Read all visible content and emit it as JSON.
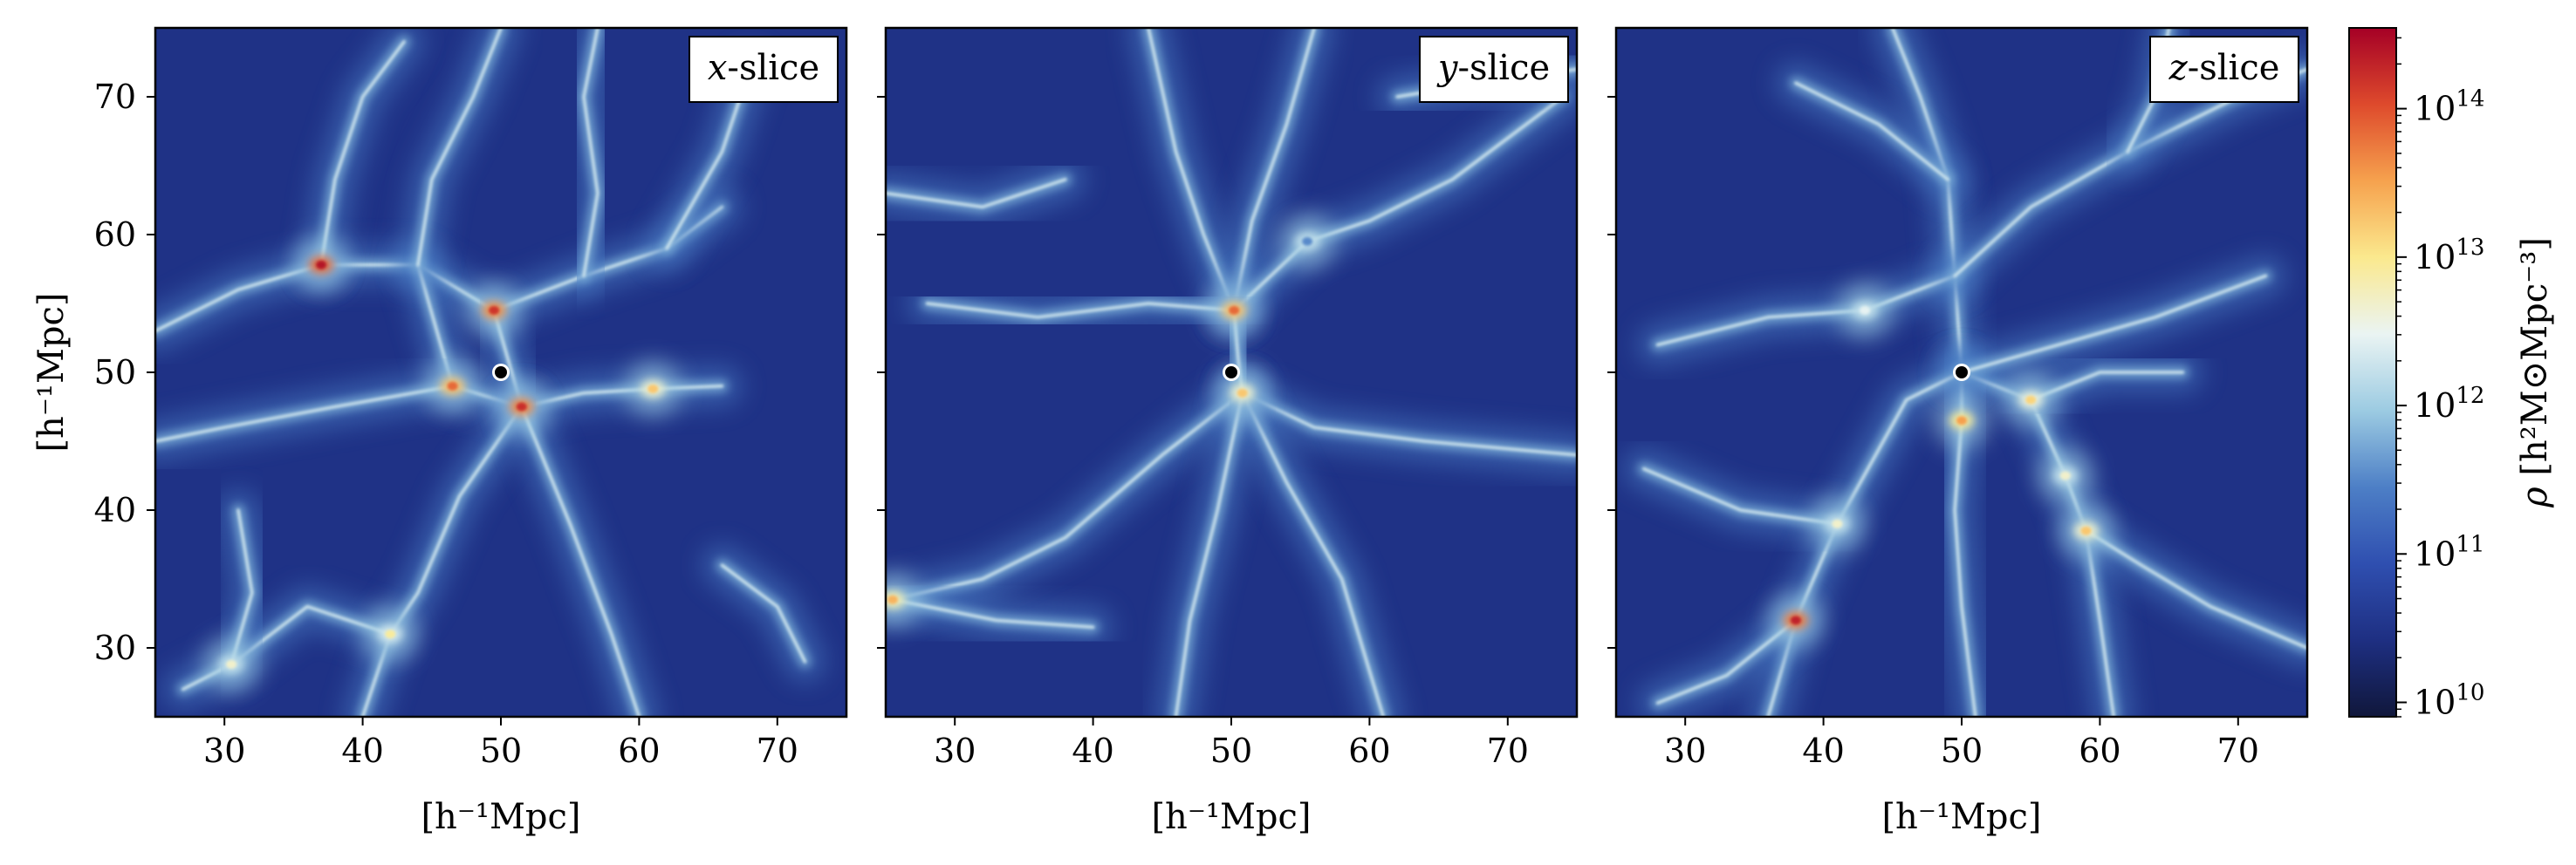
{
  "chart_data": {
    "type": "heatmap",
    "panels": [
      {
        "id": "x",
        "label_var": "x",
        "label_text": "-slice",
        "xlabel": "[h⁻¹Mpc]",
        "ylabel": "[h⁻¹Mpc]",
        "xlim": [
          25,
          75
        ],
        "ylim": [
          25,
          75
        ],
        "xticks": [
          30,
          40,
          50,
          60,
          70
        ],
        "yticks": [
          30,
          40,
          50,
          60,
          70
        ],
        "marker": {
          "x": 50,
          "y": 50
        },
        "hotspots": [
          {
            "x": 37,
            "y": 57.8,
            "level": 0.97
          },
          {
            "x": 49.5,
            "y": 54.5,
            "level": 0.92
          },
          {
            "x": 51.5,
            "y": 47.5,
            "level": 0.93
          },
          {
            "x": 46.5,
            "y": 49,
            "level": 0.85
          },
          {
            "x": 61,
            "y": 48.8,
            "level": 0.72
          },
          {
            "x": 42,
            "y": 31,
            "level": 0.65
          },
          {
            "x": 30.5,
            "y": 28.8,
            "level": 0.6
          }
        ],
        "filaments": [
          [
            [
              37,
              57.8
            ],
            [
              44,
              57.8
            ],
            [
              49.5,
              54.5
            ],
            [
              56,
              57
            ],
            [
              62,
              59
            ],
            [
              66,
              62
            ]
          ],
          [
            [
              37,
              57.8
            ],
            [
              31,
              56
            ],
            [
              25,
              53
            ]
          ],
          [
            [
              37,
              57.8
            ],
            [
              38,
              64
            ],
            [
              40,
              70
            ],
            [
              43,
              74
            ]
          ],
          [
            [
              44,
              57.8
            ],
            [
              46.5,
              49
            ],
            [
              51.5,
              47.5
            ],
            [
              56,
              48.5
            ],
            [
              61,
              48.8
            ],
            [
              66,
              49
            ]
          ],
          [
            [
              49.5,
              54.5
            ],
            [
              50.5,
              51
            ],
            [
              51.5,
              47.5
            ]
          ],
          [
            [
              51.5,
              47.5
            ],
            [
              47,
              41
            ],
            [
              44,
              34
            ],
            [
              42,
              31
            ],
            [
              40,
              25
            ]
          ],
          [
            [
              51.5,
              47.5
            ],
            [
              55,
              39
            ],
            [
              58,
              31
            ],
            [
              60,
              25
            ]
          ],
          [
            [
              42,
              31
            ],
            [
              36,
              33
            ],
            [
              30.5,
              28.8
            ],
            [
              27,
              27
            ]
          ],
          [
            [
              46.5,
              49
            ],
            [
              38,
              47.5
            ],
            [
              30,
              46
            ],
            [
              25,
              45
            ]
          ],
          [
            [
              56,
              57
            ],
            [
              57,
              63
            ],
            [
              56,
              70
            ],
            [
              57,
              75
            ]
          ],
          [
            [
              62,
              59
            ],
            [
              66,
              66
            ],
            [
              68,
              72
            ]
          ],
          [
            [
              44,
              57.8
            ],
            [
              45,
              64
            ],
            [
              48,
              70
            ],
            [
              50,
              75
            ]
          ],
          [
            [
              30.5,
              28.8
            ],
            [
              32,
              34
            ],
            [
              31,
              40
            ]
          ],
          [
            [
              66,
              36
            ],
            [
              70,
              33
            ],
            [
              72,
              29
            ]
          ]
        ]
      },
      {
        "id": "y",
        "label_var": "y",
        "label_text": "-slice",
        "xlabel": "[h⁻¹Mpc]",
        "xlim": [
          25,
          75
        ],
        "ylim": [
          25,
          75
        ],
        "xticks": [
          30,
          40,
          50,
          60,
          70
        ],
        "yticks": [
          30,
          40,
          50,
          60,
          70
        ],
        "marker": {
          "x": 50,
          "y": 50
        },
        "hotspots": [
          {
            "x": 50.2,
            "y": 54.5,
            "level": 0.85
          },
          {
            "x": 50.8,
            "y": 48.5,
            "level": 0.72
          },
          {
            "x": 25.5,
            "y": 33.5,
            "level": 0.75
          },
          {
            "x": 55.5,
            "y": 59.5,
            "level": 0.35
          }
        ],
        "filaments": [
          [
            [
              50.2,
              54.5
            ],
            [
              48,
              60
            ],
            [
              46,
              66
            ],
            [
              44,
              75
            ]
          ],
          [
            [
              50.2,
              54.5
            ],
            [
              51.5,
              61
            ],
            [
              54,
              68
            ],
            [
              56,
              75
            ]
          ],
          [
            [
              50.2,
              54.5
            ],
            [
              55.5,
              59.5
            ],
            [
              60,
              61
            ],
            [
              66,
              64
            ],
            [
              74,
              70
            ]
          ],
          [
            [
              50.2,
              54.5
            ],
            [
              44,
              55
            ],
            [
              36,
              54
            ],
            [
              28,
              55
            ]
          ],
          [
            [
              50.8,
              48.5
            ],
            [
              56,
              46
            ],
            [
              64,
              45
            ],
            [
              75,
              44
            ]
          ],
          [
            [
              50.8,
              48.5
            ],
            [
              54,
              42
            ],
            [
              58,
              35
            ],
            [
              61,
              25
            ]
          ],
          [
            [
              50.8,
              48.5
            ],
            [
              45,
              44
            ],
            [
              38,
              38
            ],
            [
              32,
              35
            ],
            [
              25.5,
              33.5
            ]
          ],
          [
            [
              50.8,
              48.5
            ],
            [
              49,
              40
            ],
            [
              47,
              32
            ],
            [
              46,
              25
            ]
          ],
          [
            [
              25.5,
              33.5
            ],
            [
              33,
              32
            ],
            [
              40,
              31.5
            ]
          ],
          [
            [
              50.2,
              54.5
            ],
            [
              50.5,
              51
            ],
            [
              50.8,
              48.5
            ]
          ],
          [
            [
              25,
              63
            ],
            [
              32,
              62
            ],
            [
              38,
              64
            ]
          ],
          [
            [
              62,
              70
            ],
            [
              68,
              71
            ],
            [
              75,
              72
            ]
          ]
        ]
      },
      {
        "id": "z",
        "label_var": "z",
        "label_text": "-slice",
        "xlabel": "[h⁻¹Mpc]",
        "xlim": [
          25,
          75
        ],
        "ylim": [
          25,
          75
        ],
        "xticks": [
          30,
          40,
          50,
          60,
          70
        ],
        "yticks": [
          30,
          40,
          50,
          60,
          70
        ],
        "marker": {
          "x": 50,
          "y": 50
        },
        "hotspots": [
          {
            "x": 38,
            "y": 32,
            "level": 0.95
          },
          {
            "x": 50,
            "y": 46.5,
            "level": 0.78
          },
          {
            "x": 55,
            "y": 48,
            "level": 0.7
          },
          {
            "x": 59,
            "y": 38.5,
            "level": 0.72
          },
          {
            "x": 57.5,
            "y": 42.5,
            "level": 0.6
          },
          {
            "x": 41,
            "y": 39,
            "level": 0.6
          },
          {
            "x": 43,
            "y": 54.5,
            "level": 0.55
          }
        ],
        "filaments": [
          [
            [
              50,
              50
            ],
            [
              49.5,
              57
            ],
            [
              49,
              64
            ],
            [
              47,
              70
            ],
            [
              45,
              75
            ]
          ],
          [
            [
              50,
              50
            ],
            [
              50,
              46.5
            ],
            [
              49.5,
              40
            ],
            [
              50,
              33
            ],
            [
              51,
              25
            ]
          ],
          [
            [
              50,
              50
            ],
            [
              55,
              48
            ],
            [
              57.5,
              42.5
            ],
            [
              59,
              38.5
            ],
            [
              60,
              32
            ],
            [
              61,
              25
            ]
          ],
          [
            [
              50,
              50
            ],
            [
              46,
              48
            ],
            [
              41,
              39
            ],
            [
              38,
              32
            ],
            [
              36,
              25
            ]
          ],
          [
            [
              49.5,
              57
            ],
            [
              43,
              54.5
            ],
            [
              36,
              54
            ],
            [
              28,
              52
            ]
          ],
          [
            [
              49.5,
              57
            ],
            [
              55,
              62
            ],
            [
              62,
              66
            ],
            [
              70,
              70
            ],
            [
              75,
              72
            ]
          ],
          [
            [
              50,
              50
            ],
            [
              57,
              52
            ],
            [
              64,
              54
            ],
            [
              72,
              57
            ]
          ],
          [
            [
              41,
              39
            ],
            [
              34,
              40
            ],
            [
              27,
              43
            ]
          ],
          [
            [
              38,
              32
            ],
            [
              33,
              28
            ],
            [
              28,
              26
            ]
          ],
          [
            [
              55,
              48
            ],
            [
              60,
              50
            ],
            [
              66,
              50
            ]
          ],
          [
            [
              59,
              38.5
            ],
            [
              63,
              36
            ],
            [
              68,
              33
            ],
            [
              75,
              30
            ]
          ],
          [
            [
              49,
              64
            ],
            [
              44,
              68
            ],
            [
              38,
              71
            ]
          ],
          [
            [
              62,
              66
            ],
            [
              64,
              70
            ],
            [
              65,
              75
            ]
          ]
        ]
      }
    ],
    "colorbar": {
      "label_prefix": "ρ",
      "label_units": "[h²M⊙Mpc⁻³]",
      "scale": "log",
      "range": [
        8000000000.0,
        350000000000000.0
      ],
      "ticks": [
        {
          "value": 10000000000.0,
          "base": "10",
          "exp": "10"
        },
        {
          "value": 100000000000.0,
          "base": "10",
          "exp": "11"
        },
        {
          "value": 1000000000000.0,
          "base": "10",
          "exp": "12"
        },
        {
          "value": 10000000000000.0,
          "base": "10",
          "exp": "13"
        },
        {
          "value": 100000000000000.0,
          "base": "10",
          "exp": "14"
        }
      ],
      "colormap": "RdYlBu_r (dark navy low → red high)",
      "stops": [
        "#10173b",
        "#1e2f82",
        "#2f4fb0",
        "#4d7fc6",
        "#9ccbe2",
        "#eaf4f3",
        "#fbe98e",
        "#f6a24e",
        "#de4a2c",
        "#a50026"
      ]
    },
    "background_color": "#1f3288",
    "marker_color": "#000000"
  }
}
